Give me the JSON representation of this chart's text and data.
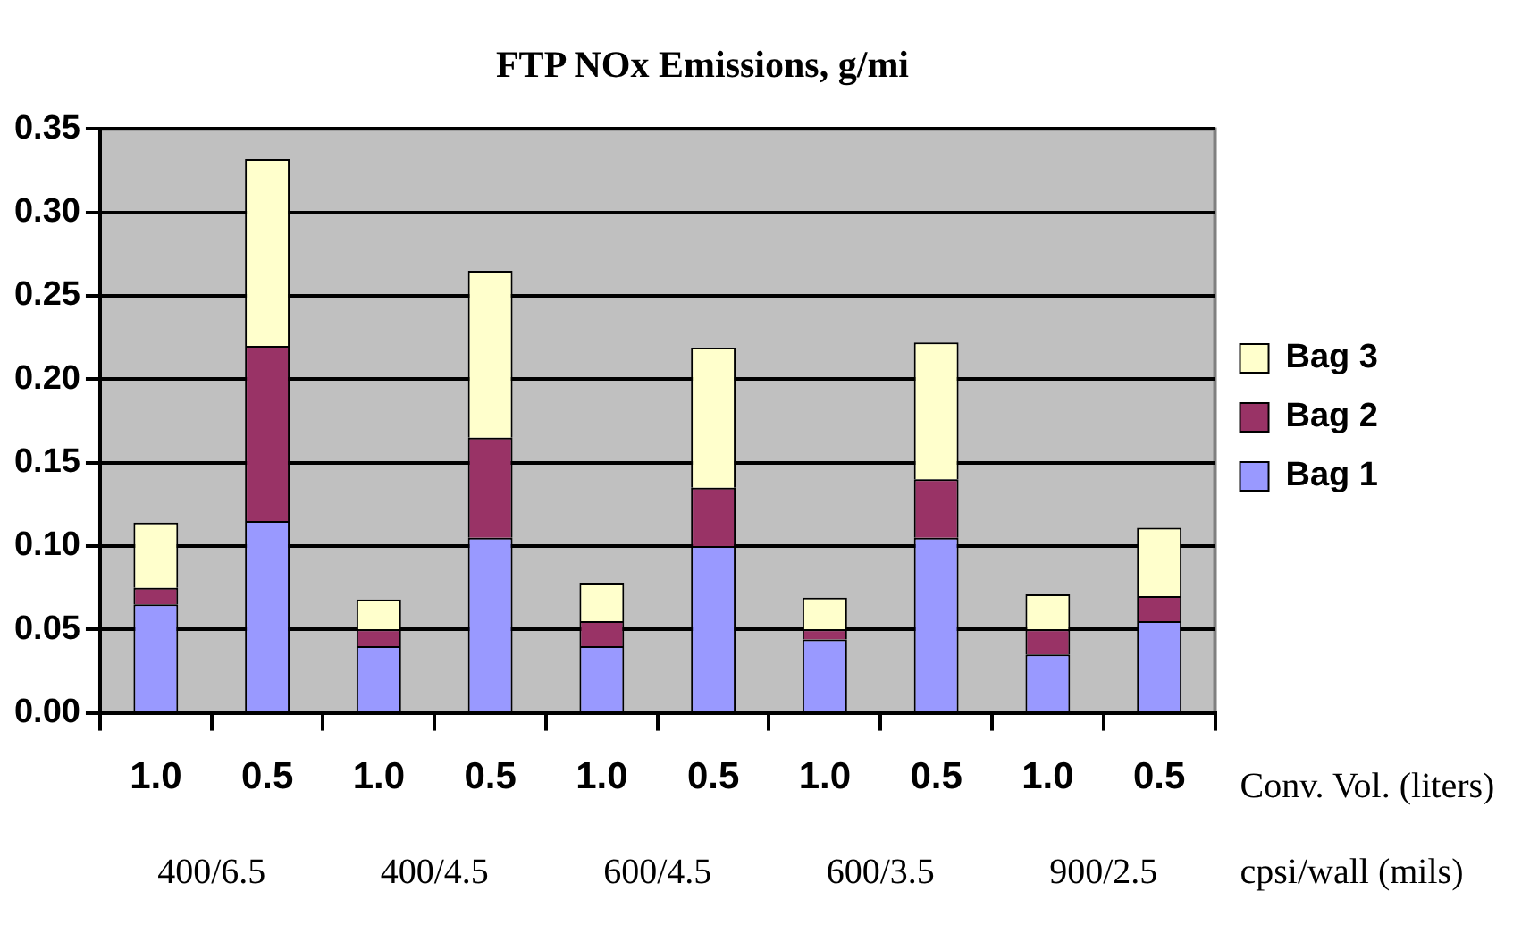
{
  "chart_data": {
    "type": "bar",
    "title": "FTP NOx Emissions, g/mi",
    "xlabel": "Conv. Vol. (liters)",
    "categories": [
      "1.0",
      "0.5",
      "1.0",
      "0.5",
      "1.0",
      "0.5",
      "1.0",
      "0.5",
      "1.0",
      "0.5"
    ],
    "stacked": true,
    "series": [
      {
        "name": "Bag 1",
        "color": "#9999ff",
        "values": [
          0.065,
          0.115,
          0.04,
          0.105,
          0.04,
          0.1,
          0.044,
          0.105,
          0.035,
          0.055
        ]
      },
      {
        "name": "Bag 2",
        "color": "#993366",
        "values": [
          0.01,
          0.105,
          0.01,
          0.06,
          0.015,
          0.035,
          0.006,
          0.035,
          0.015,
          0.015
        ]
      },
      {
        "name": "Bag 3",
        "color": "#ffffcc",
        "values": [
          0.039,
          0.112,
          0.018,
          0.1,
          0.023,
          0.084,
          0.019,
          0.082,
          0.021,
          0.041
        ]
      }
    ],
    "annotations": [
      "400/6.5",
      "400/4.5",
      "600/4.5",
      "600/3.5",
      "900/2.5",
      "cpsi/wall (mils)"
    ],
    "ylim": [
      0,
      0.35
    ],
    "yticks": [
      {
        "value": 0,
        "label": "0.00"
      },
      0.05,
      {
        "value": 0.1,
        "label": "0.10"
      },
      0.15,
      {
        "value": 0.2,
        "label": "0.20"
      },
      0.25,
      {
        "value": 0.3,
        "label": "0.30"
      },
      0.35
    ],
    "grid": "y",
    "legend": "right"
  }
}
